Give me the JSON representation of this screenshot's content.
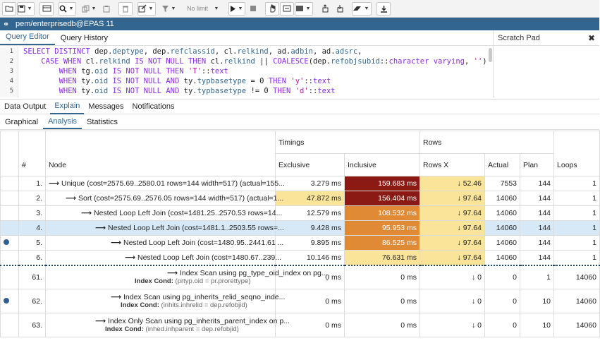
{
  "connection": {
    "label": "pem/enterprisedb@EPAS 11"
  },
  "toolbar": {
    "limit_label": "No limit"
  },
  "editor_tabs": [
    {
      "label": "Query Editor"
    },
    {
      "label": "Query History"
    }
  ],
  "scratch_pad": {
    "title": "Scratch Pad",
    "close": "✖"
  },
  "editor": {
    "line_numbers": [
      "1",
      "2",
      "3",
      "4",
      "5"
    ]
  },
  "output_tabs": [
    {
      "label": "Data Output"
    },
    {
      "label": "Explain"
    },
    {
      "label": "Messages"
    },
    {
      "label": "Notifications"
    }
  ],
  "explain_tabs": [
    {
      "label": "Graphical"
    },
    {
      "label": "Analysis"
    },
    {
      "label": "Statistics"
    }
  ],
  "table": {
    "header_hash": "#",
    "header_node": "Node",
    "header_timings": "Timings",
    "header_rows": "Rows",
    "header_exclusive": "Exclusive",
    "header_inclusive": "Inclusive",
    "header_rows_x": "Rows X",
    "header_actual": "Actual",
    "header_plan": "Plan",
    "header_loops": "Loops",
    "rows": [
      {
        "num": "1.",
        "node": "Unique (cost=2575.69..2580.01 rows=144 width=517) (actual=155...",
        "exclusive": "3.279 ms",
        "inclusive": "159.683 ms",
        "rows_x": "↓ 52.46",
        "actual": "7553",
        "plan": "144",
        "loops": "1"
      },
      {
        "num": "2.",
        "node": "Sort (cost=2575.69..2576.05 rows=144 width=517) (actual=1...",
        "exclusive": "47.872 ms",
        "inclusive": "156.404 ms",
        "rows_x": "↓ 97.64",
        "actual": "14060",
        "plan": "144",
        "loops": "1"
      },
      {
        "num": "3.",
        "node": "Nested Loop Left Join (cost=1481.25..2570.53 rows=14...",
        "exclusive": "12.579 ms",
        "inclusive": "108.532 ms",
        "rows_x": "↓ 97.64",
        "actual": "14060",
        "plan": "144",
        "loops": "1"
      },
      {
        "num": "4.",
        "node": "Nested Loop Left Join (cost=1481.1..2503.55 rows=...",
        "exclusive": "9.428 ms",
        "inclusive": "95.953 ms",
        "rows_x": "↓ 97.64",
        "actual": "14060",
        "plan": "144",
        "loops": "1"
      },
      {
        "num": "5.",
        "node": "Nested Loop Left Join (cost=1480.95..2441.61 ...",
        "exclusive": "9.895 ms",
        "inclusive": "86.525 ms",
        "rows_x": "↓ 97.64",
        "actual": "14060",
        "plan": "144",
        "loops": "1"
      },
      {
        "num": "6.",
        "node": "Nested Loop Left Join (cost=1480.67..239...",
        "exclusive": "10.146 ms",
        "inclusive": "76.631 ms",
        "rows_x": "↓ 97.64",
        "actual": "14060",
        "plan": "144",
        "loops": "1"
      },
      {
        "num": "61.",
        "node": "Index Scan using pg_type_oid_index on pg...",
        "cond_label": "Index Cond:",
        "cond": "(prtyp.oid = pr.prorettype)",
        "exclusive": "0 ms",
        "inclusive": "0 ms",
        "rows_x": "↓ 0",
        "actual": "0",
        "plan": "1",
        "loops": "14060"
      },
      {
        "num": "62.",
        "node": "Index Scan using pg_inherits_relid_seqno_inde...",
        "cond_label": "Index Cond:",
        "cond": "(inhits.inhrelid = dep.refobjid)",
        "exclusive": "0 ms",
        "inclusive": "0 ms",
        "rows_x": "↓ 0",
        "actual": "0",
        "plan": "10",
        "loops": "14060"
      },
      {
        "num": "63.",
        "node": "Index Only Scan using pg_inherits_parent_index on p...",
        "cond_label": "Index Cond:",
        "cond": "(inhed.inhparent = dep.refobjid)",
        "exclusive": "0 ms",
        "inclusive": "0 ms",
        "rows_x": "↓ 0",
        "actual": "0",
        "plan": "10",
        "loops": "14060"
      }
    ]
  },
  "colors": {
    "dark_red": "#8b1a14",
    "orange": "#e08a36",
    "light_yellow": "#f9e49a",
    "accent": "#326690"
  }
}
